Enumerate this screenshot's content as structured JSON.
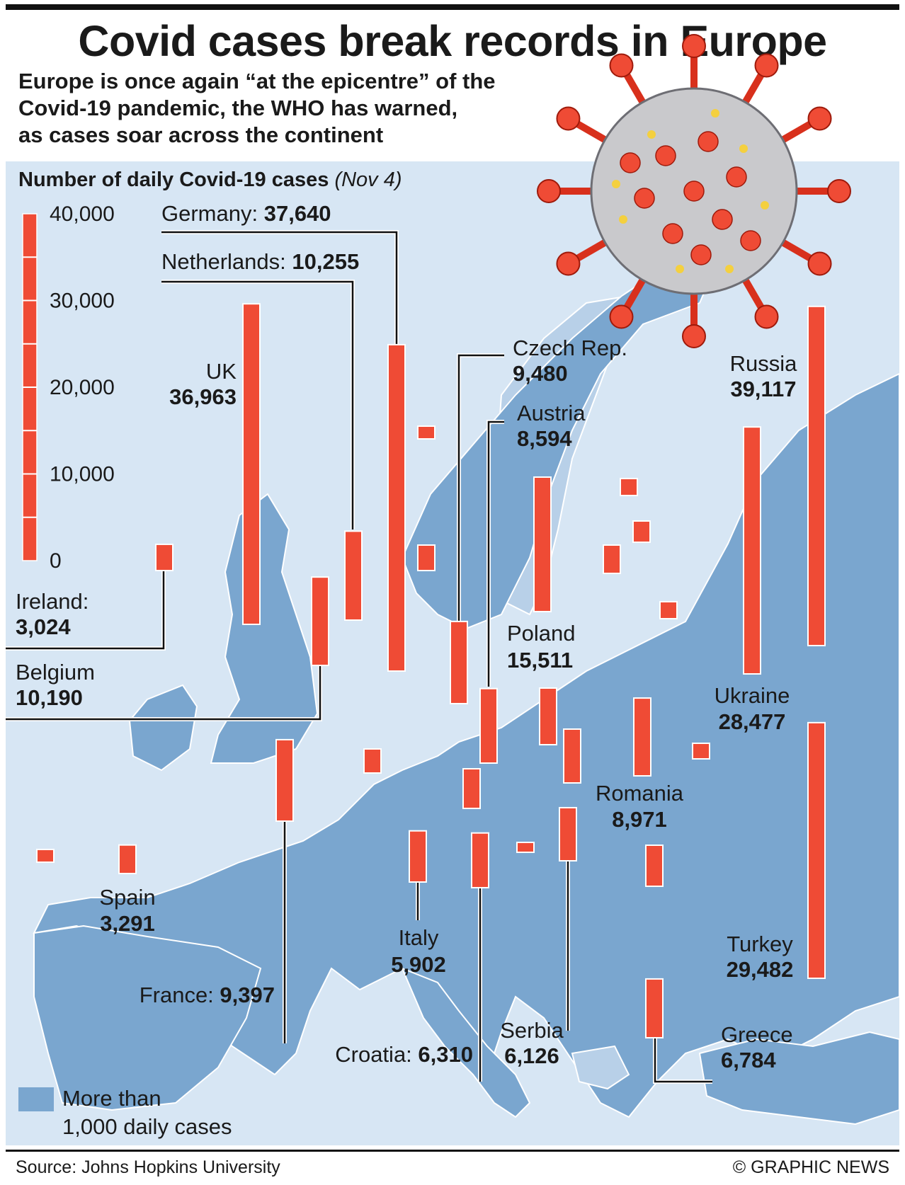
{
  "title": "Covid cases break records in Europe",
  "subtitle": [
    "Europe is once again “at the epicentre” of the",
    "Covid-19 pandemic, the WHO has warned,",
    "as cases soar across the continent"
  ],
  "axis_title": "Number of daily Covid-19 cases",
  "axis_date": "(Nov 4)",
  "legend_lines": [
    "More than",
    "1,000 daily cases"
  ],
  "source": "Source: Johns Hopkins University",
  "credit": "© GRAPHIC NEWS",
  "colors": {
    "bar": "#ef4b35",
    "map_land": "#7aa6cf",
    "map_sea": "#d7e6f4",
    "map_light": "#b8d0e8"
  },
  "chart_data": {
    "type": "bar",
    "scale_ticks": [
      "40,000",
      "30,000",
      "20,000",
      "10,000",
      "0"
    ],
    "ylim": [
      0,
      40000
    ],
    "bars": [
      {
        "name": "Germany:",
        "label": "Germany:",
        "value": "37,640",
        "v": 37640
      },
      {
        "name": "Netherlands:",
        "label": "Netherlands:",
        "value": "10,255",
        "v": 10255
      },
      {
        "name": "UK",
        "label": "UK",
        "value": "36,963",
        "v": 36963
      },
      {
        "name": "Ireland:",
        "label": "Ireland:",
        "value": "3,024",
        "v": 3024
      },
      {
        "name": "Belgium",
        "label": "Belgium",
        "value": "10,190",
        "v": 10190
      },
      {
        "name": "Czech Rep.",
        "label": "Czech Rep.",
        "value": "9,480",
        "v": 9480
      },
      {
        "name": "Austria",
        "label": "Austria",
        "value": "8,594",
        "v": 8594
      },
      {
        "name": "Poland",
        "label": "Poland",
        "value": "15,511",
        "v": 15511
      },
      {
        "name": "Russia",
        "label": "Russia",
        "value": "39,117",
        "v": 39117
      },
      {
        "name": "Ukraine",
        "label": "Ukraine",
        "value": "28,477",
        "v": 28477
      },
      {
        "name": "Romania",
        "label": "Romania",
        "value": "8,971",
        "v": 8971
      },
      {
        "name": "Turkey",
        "label": "Turkey",
        "value": "29,482",
        "v": 29482
      },
      {
        "name": "Greece",
        "label": "Greece",
        "value": "6,784",
        "v": 6784
      },
      {
        "name": "Serbia",
        "label": "Serbia",
        "value": "6,126",
        "v": 6126
      },
      {
        "name": "Croatia:",
        "label": "Croatia:",
        "value": "6,310",
        "v": 6310
      },
      {
        "name": "Italy",
        "label": "Italy",
        "value": "5,902",
        "v": 5902
      },
      {
        "name": "France:",
        "label": "France:",
        "value": "9,397",
        "v": 9397
      },
      {
        "name": "Spain",
        "label": "Spain",
        "value": "3,291",
        "v": 3291
      }
    ]
  }
}
